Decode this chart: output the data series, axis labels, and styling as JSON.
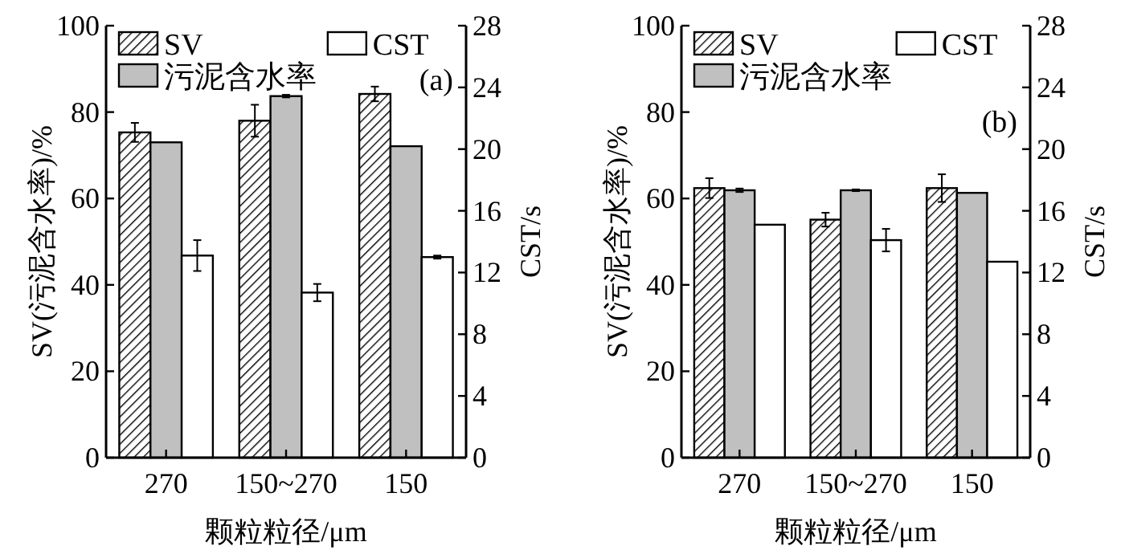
{
  "chart_data": [
    {
      "type": "bar",
      "categories": [
        "270",
        "150~270",
        "150"
      ],
      "xlabel": "颗粒粒径/μm",
      "ylabel": "SV(污泥含水率)/%",
      "y2label": "CST/s",
      "ylim": [
        0,
        100
      ],
      "yticks": [
        0,
        20,
        40,
        60,
        80,
        100
      ],
      "y2lim": [
        0,
        28
      ],
      "y2ticks": [
        0,
        4,
        8,
        12,
        16,
        20,
        24,
        28
      ],
      "legend": "top",
      "annotations": [
        "(a)"
      ],
      "series": [
        {
          "name": "SV",
          "color": "#000000",
          "values": [
            75.3,
            78,
            84.2
          ],
          "errors": [
            2.2,
            3.7,
            1.7
          ]
        },
        {
          "name": "污泥含水率",
          "color": "#c0c0c0",
          "values": [
            73,
            83.7,
            72.1
          ],
          "errors": [
            null,
            0.3,
            null
          ]
        },
        {
          "name": "CST",
          "color": "#ffffff",
          "axis": "y2",
          "values": [
            13.1,
            10.7,
            13.0
          ],
          "errors": [
            1.0,
            0.56,
            0.1
          ]
        }
      ]
    },
    {
      "type": "bar",
      "categories": [
        "270",
        "150~270",
        "150"
      ],
      "xlabel": "颗粒粒径/μm",
      "ylabel": "SV(污泥含水率)/%",
      "y2label": "CST/s",
      "ylim": [
        0,
        100
      ],
      "yticks": [
        0,
        20,
        40,
        60,
        80,
        100
      ],
      "y2lim": [
        0,
        28
      ],
      "y2ticks": [
        0,
        4,
        8,
        12,
        16,
        20,
        24,
        28
      ],
      "legend": "top",
      "annotations": [
        "(b)"
      ],
      "series": [
        {
          "name": "SV",
          "color": "#000000",
          "values": [
            62.4,
            55.1,
            62.4
          ],
          "errors": [
            2.3,
            1.6,
            3.2
          ]
        },
        {
          "name": "污泥含水率",
          "color": "#c0c0c0",
          "values": [
            61.9,
            61.9,
            61.3
          ],
          "errors": [
            0.4,
            0.2,
            null
          ]
        },
        {
          "name": "CST",
          "color": "#ffffff",
          "axis": "y2",
          "values": [
            15.1,
            14.1,
            12.7
          ],
          "errors": [
            null,
            0.73,
            null
          ]
        }
      ]
    }
  ]
}
